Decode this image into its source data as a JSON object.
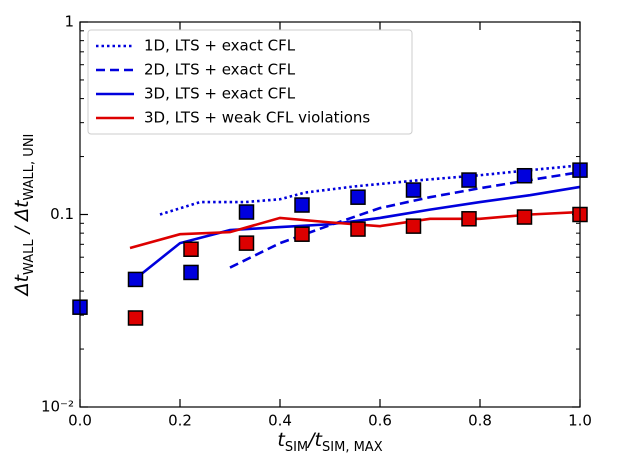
{
  "chart_data": {
    "type": "line",
    "xlabel": [
      "t",
      "SIM",
      "/t",
      "SIM, MAX"
    ],
    "ylabel": [
      "Δt",
      "WALL",
      " / Δt",
      "WALL, UNI"
    ],
    "ylog": true,
    "xlim": [
      0,
      1
    ],
    "ylim": [
      0.01,
      1
    ],
    "xticks": [
      {
        "value": 0,
        "label": "0.0"
      },
      {
        "value": 0.2,
        "label": "0.2"
      },
      {
        "value": 0.4,
        "label": "0.4"
      },
      {
        "value": 0.6,
        "label": "0.6"
      },
      {
        "value": 0.8,
        "label": "0.8"
      },
      {
        "value": 1,
        "label": "1.0"
      }
    ],
    "yticks": [
      {
        "value": 0.01,
        "label": "10⁻²"
      },
      0.1,
      1
    ],
    "legend": "upper left",
    "series": [
      {
        "name": "1D, LTS + exact CFL",
        "color": "#0000dd",
        "style": "dotted",
        "x": [
          0.16,
          0.24,
          0.33,
          0.4,
          0.45,
          0.55,
          0.67,
          0.8,
          0.9,
          1.0
        ],
        "values": [
          0.1,
          0.116,
          0.116,
          0.12,
          0.13,
          0.14,
          0.15,
          0.16,
          0.17,
          0.18
        ]
      },
      {
        "name": "2D, LTS + exact CFL",
        "color": "#0000dd",
        "style": "dashed",
        "x": [
          0.3,
          0.4,
          0.5,
          0.6,
          0.7,
          0.8,
          0.9,
          1.0
        ],
        "values": [
          0.053,
          0.071,
          0.088,
          0.108,
          0.123,
          0.137,
          0.151,
          0.166
        ]
      },
      {
        "name": "3D, LTS + exact CFL",
        "color": "#0000dd",
        "style": "solid",
        "x": [
          0.1,
          0.2,
          0.3,
          0.4,
          0.5,
          0.6,
          0.7,
          0.8,
          0.9,
          1.0
        ],
        "values": [
          0.044,
          0.071,
          0.083,
          0.086,
          0.089,
          0.096,
          0.106,
          0.116,
          0.126,
          0.139
        ]
      },
      {
        "name": "3D, LTS + weak CFL violations",
        "color": "#dd0000",
        "style": "solid",
        "x": [
          0.1,
          0.2,
          0.3,
          0.4,
          0.5,
          0.6,
          0.7,
          0.8,
          0.9,
          1.0
        ],
        "values": [
          0.067,
          0.079,
          0.081,
          0.096,
          0.091,
          0.087,
          0.095,
          0.095,
          0.1,
          0.103
        ]
      },
      {
        "color": "#0000dd",
        "style": "square",
        "x": [
          0,
          0.111,
          0.222,
          0.333,
          0.444,
          0.556,
          0.667,
          0.778,
          0.889,
          1.0
        ],
        "values": [
          0.033,
          0.046,
          0.05,
          0.103,
          0.112,
          0.123,
          0.134,
          0.151,
          0.159,
          0.17
        ]
      },
      {
        "color": "#dd0000",
        "style": "square",
        "x": [
          0.111,
          0.222,
          0.333,
          0.444,
          0.556,
          0.667,
          0.778,
          0.889,
          1.0
        ],
        "values": [
          0.029,
          0.066,
          0.071,
          0.079,
          0.084,
          0.087,
          0.095,
          0.097,
          0.1
        ]
      }
    ]
  }
}
